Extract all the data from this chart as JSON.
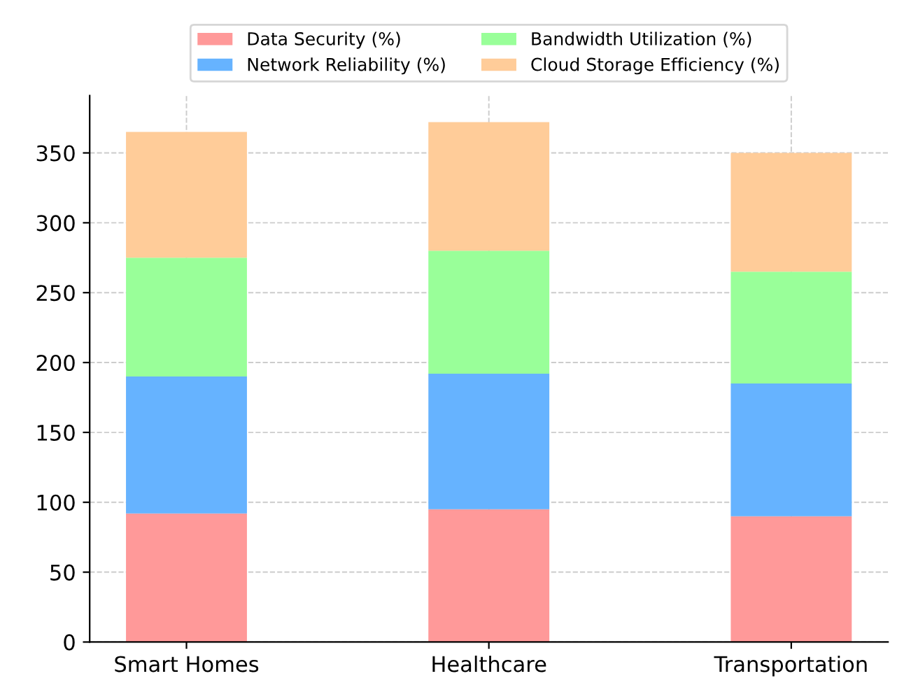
{
  "chart_data": {
    "type": "bar",
    "stacked": true,
    "categories": [
      "Smart Homes",
      "Healthcare",
      "Transportation"
    ],
    "series": [
      {
        "name": "Data Security (%)",
        "color": "#ff9999",
        "values": [
          92,
          95,
          90
        ]
      },
      {
        "name": "Network Reliability (%)",
        "color": "#66b3ff",
        "values": [
          98,
          97,
          95
        ]
      },
      {
        "name": "Bandwidth Utilization (%)",
        "color": "#99ff99",
        "values": [
          85,
          88,
          80
        ]
      },
      {
        "name": "Cloud Storage Efficiency (%)",
        "color": "#ffcc99",
        "values": [
          90,
          92,
          85
        ]
      }
    ],
    "ylim": [
      0,
      391
    ],
    "yticks": [
      0,
      50,
      100,
      150,
      200,
      250,
      300,
      350
    ],
    "grid": true,
    "legend": "top"
  }
}
